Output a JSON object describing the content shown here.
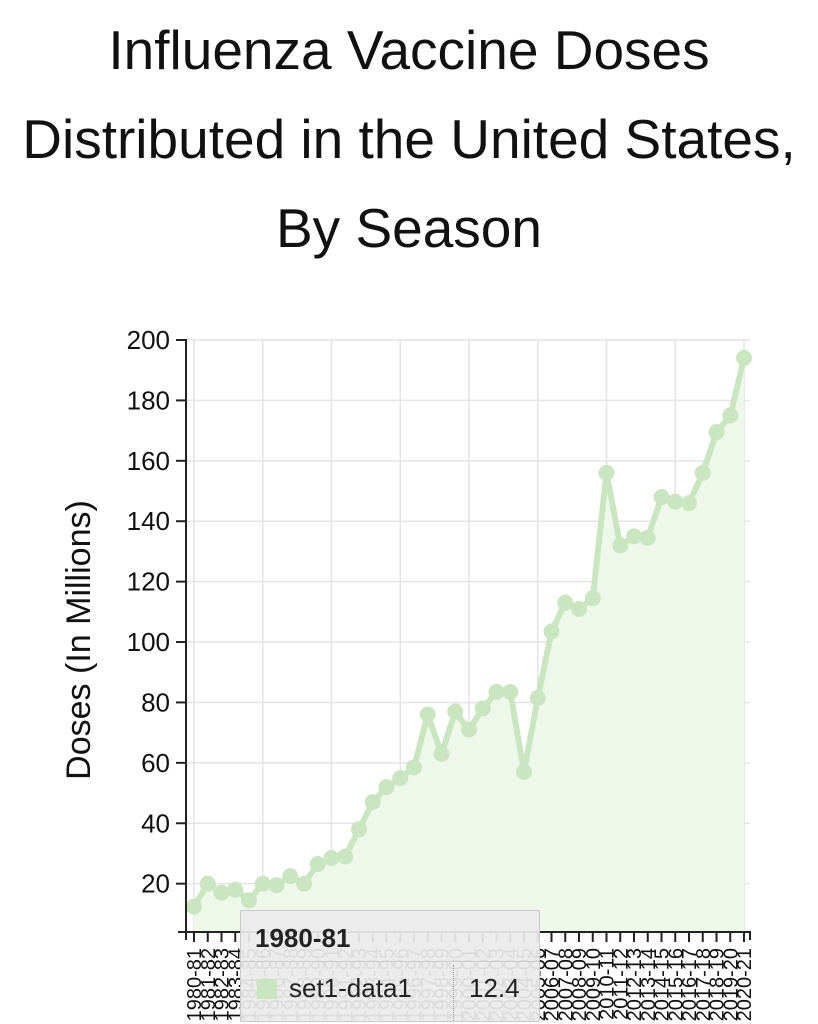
{
  "title": "Influenza Vaccine Doses Distributed in the United States, By Season",
  "colors": {
    "series": "#c9e6c0",
    "area": "#eef8ea",
    "grid": "#e4e4e4",
    "axis": "#222222"
  },
  "chart_data": {
    "type": "area",
    "title": "Influenza Vaccine Doses Distributed in the United States, By Season",
    "ylabel": "Doses (In Millions)",
    "xlabel": "",
    "ylim": [
      4,
      200
    ],
    "yticks": [
      20,
      40,
      60,
      80,
      100,
      120,
      140,
      160,
      180,
      200
    ],
    "grid": true,
    "legend": "none",
    "categories": [
      "1980-81",
      "1981-82",
      "1982-83",
      "1983-84",
      "1984-85",
      "1985-86",
      "1986-87",
      "1987-88",
      "1988-89",
      "1989-90",
      "1990-91",
      "1991-92",
      "1992-93",
      "1993-94",
      "1994-95",
      "1995-96",
      "1996-97",
      "1997-98",
      "1998-99",
      "1999-00",
      "2000-01",
      "2001-02",
      "2002-03",
      "2003-04",
      "2004-05",
      "2005-06",
      "2006-07",
      "2007-08",
      "2008-09",
      "2009-10",
      "2010-11",
      "2011-12",
      "2012-13",
      "2013-14",
      "2014-15",
      "2015-16",
      "2016-17",
      "2017-18",
      "2018-19",
      "2019-20",
      "2020-21"
    ],
    "series": [
      {
        "name": "set1-data1",
        "values": [
          12.4,
          20,
          17,
          18,
          14.5,
          20,
          19.5,
          22.5,
          20,
          26.5,
          28.5,
          29,
          38,
          47,
          52,
          55,
          58.5,
          76,
          63,
          77,
          71,
          78,
          83.5,
          83.5,
          57,
          81.5,
          103.5,
          113,
          111,
          114.5,
          156,
          132,
          135,
          134.5,
          148,
          146.5,
          146,
          156,
          169.5,
          175,
          194
        ]
      }
    ],
    "tooltip": {
      "category": "1980-81",
      "series": "set1-data1",
      "value": "12.4"
    }
  }
}
